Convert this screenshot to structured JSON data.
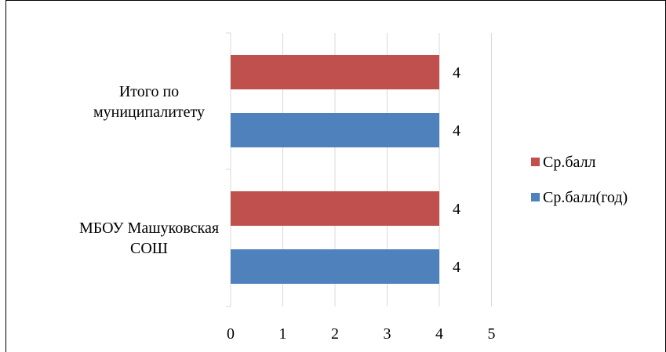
{
  "chart_data": {
    "type": "bar",
    "orientation": "horizontal",
    "categories": [
      "Итого по муниципалитету",
      "МБОУ Машуковская СОШ"
    ],
    "category_label_lines": [
      [
        "Итого по",
        "муниципалитету"
      ],
      [
        "МБОУ Машуковская",
        "СОШ"
      ]
    ],
    "series": [
      {
        "name": "Ср.балл",
        "values": [
          4,
          4
        ],
        "color": "#C0504D"
      },
      {
        "name": "Ср.балл(год)",
        "values": [
          4,
          4
        ],
        "color": "#4F81BD"
      }
    ],
    "data_labels": true,
    "xlim": [
      0,
      5
    ],
    "x_ticks": [
      0,
      1,
      2,
      3,
      4,
      5
    ],
    "grid": "vertical",
    "legend": "right"
  }
}
